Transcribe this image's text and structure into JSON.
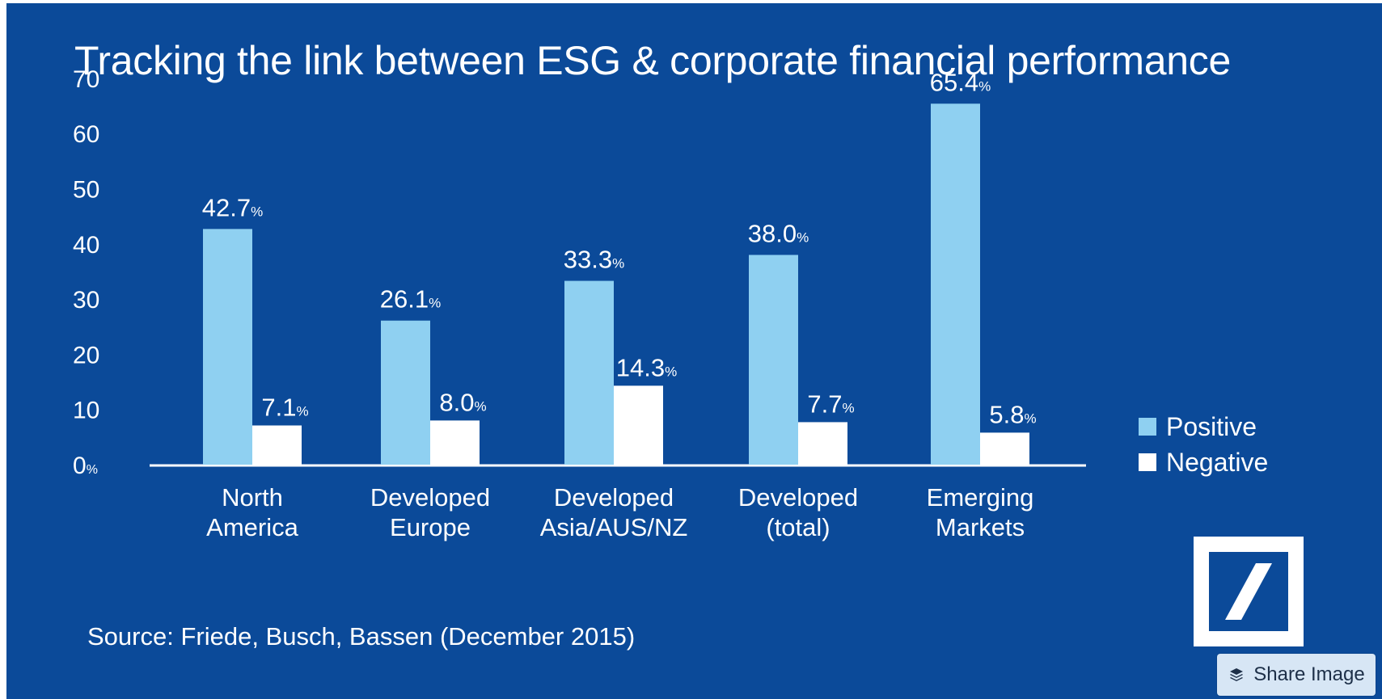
{
  "page": {
    "title": "Tracking the link between ESG & corporate financial performance",
    "source": "Source: Friede, Busch, Bassen (December 2015)",
    "share_label": "Share Image",
    "logo_icon": "deutsche-bank-logo",
    "share_icon": "layers-icon"
  },
  "colors": {
    "background": "#0b4a99",
    "positive": "#8fd0f1",
    "negative": "#ffffff",
    "text": "#ffffff"
  },
  "chart_data": {
    "type": "bar",
    "title": "Tracking the link between ESG & corporate financial performance",
    "categories": [
      [
        "North",
        "America"
      ],
      [
        "Developed",
        "Europe"
      ],
      [
        "Developed",
        "Asia/AUS/NZ"
      ],
      [
        "Developed",
        "(total)"
      ],
      [
        "Emerging",
        "Markets"
      ]
    ],
    "series": [
      {
        "name": "Positive",
        "values": [
          42.7,
          26.1,
          33.3,
          38.0,
          65.4
        ],
        "labels": [
          "42.7",
          "26.1",
          "33.3",
          "38.0",
          "65.4"
        ],
        "color": "#8fd0f1"
      },
      {
        "name": "Negative",
        "values": [
          7.1,
          8.0,
          14.3,
          7.7,
          5.8
        ],
        "labels": [
          "7.1",
          "8.0",
          "14.3",
          "7.7",
          "5.8"
        ],
        "color": "#ffffff"
      }
    ],
    "label_suffix": "%",
    "y_ticks": [
      "70",
      "60",
      "50",
      "40",
      "30",
      "20",
      "10",
      "0"
    ],
    "y_tick_values": [
      70,
      60,
      50,
      40,
      30,
      20,
      10,
      0
    ],
    "zero_suffix": "%",
    "ylim": [
      0,
      70
    ],
    "grid": false,
    "legend_position": "right"
  }
}
